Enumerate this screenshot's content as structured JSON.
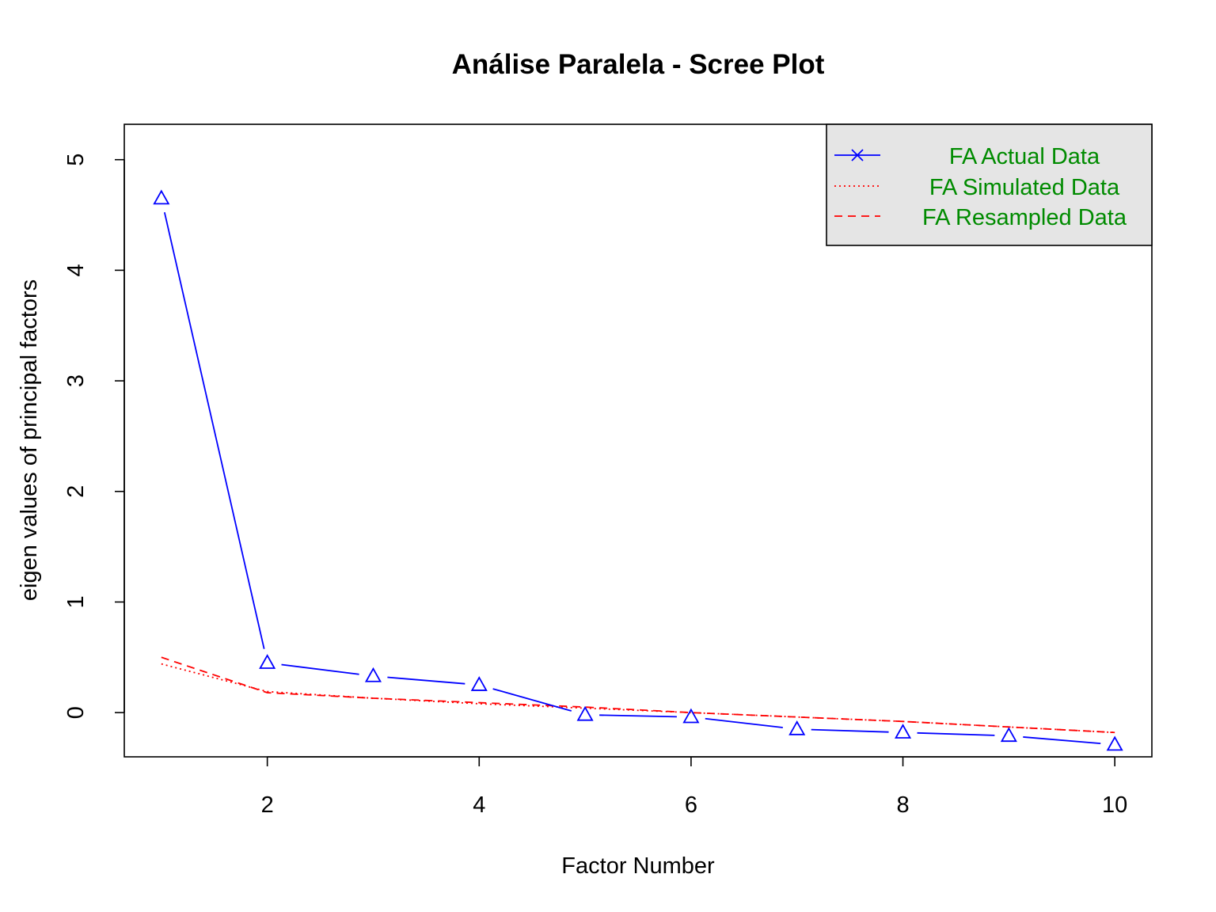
{
  "chart_data": {
    "type": "line",
    "title": "Análise Paralela - Scree Plot",
    "xlabel": "Factor Number",
    "ylabel": "eigen values of principal factors",
    "xlim": [
      0.65,
      10.35
    ],
    "ylim": [
      -0.4,
      5.32
    ],
    "x_ticks": [
      2,
      4,
      6,
      8,
      10
    ],
    "y_ticks": [
      0,
      1,
      2,
      3,
      4,
      5
    ],
    "x_tick_labels": [
      "2",
      "4",
      "6",
      "8",
      "10"
    ],
    "y_tick_labels": [
      "0",
      "1",
      "2",
      "3",
      "4",
      "5"
    ],
    "x": [
      1,
      2,
      3,
      4,
      5,
      6,
      7,
      8,
      9,
      10
    ],
    "series": [
      {
        "name": "FA  Actual Data",
        "color": "#0000ff",
        "line_style": "solid",
        "marker": "triangle-open",
        "legend_marker": "x",
        "values": [
          4.65,
          0.45,
          0.33,
          0.25,
          -0.02,
          -0.04,
          -0.15,
          -0.18,
          -0.21,
          -0.29
        ]
      },
      {
        "name": "FA  Simulated Data",
        "color": "#ff0000",
        "line_style": "dotted",
        "values": [
          0.44,
          0.19,
          0.13,
          0.08,
          0.04,
          0.0,
          -0.04,
          -0.08,
          -0.13,
          -0.18
        ]
      },
      {
        "name": "FA  Resampled Data",
        "color": "#ff0000",
        "line_style": "dashed",
        "values": [
          0.5,
          0.18,
          0.13,
          0.09,
          0.05,
          0.0,
          -0.04,
          -0.08,
          -0.13,
          -0.18
        ]
      }
    ],
    "legend": {
      "position": "top-right",
      "background": "#e5e5e5",
      "text_color": "#008b00"
    },
    "grid": false
  }
}
